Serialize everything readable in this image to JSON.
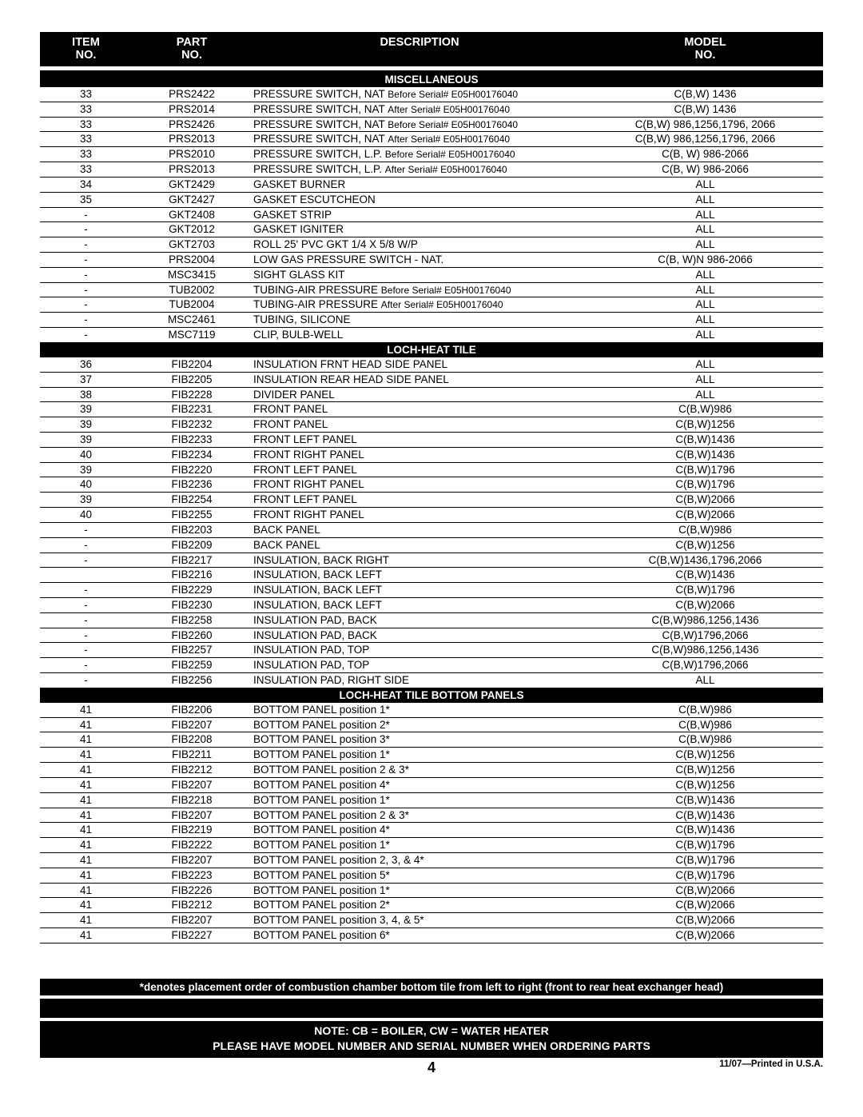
{
  "header": {
    "item1": "ITEM",
    "item2": "NO.",
    "part1": "PART",
    "part2": "NO.",
    "desc": "DESCRIPTION",
    "model1": "MODEL",
    "model2": "NO."
  },
  "sections": [
    {
      "title": "MISCELLANEOUS",
      "rows": [
        {
          "item": "33",
          "part": "PRS2422",
          "desc": "PRESSURE SWITCH, NAT",
          "serial": "Before Serial# E05H00176040",
          "model": "C(B,W) 1436"
        },
        {
          "item": "33",
          "part": "PRS2014",
          "desc": "PRESSURE SWITCH, NAT",
          "serial": "After Serial# E05H00176040",
          "model": "C(B,W) 1436"
        },
        {
          "item": "33",
          "part": "PRS2426",
          "desc": "PRESSURE SWITCH, NAT",
          "serial": "Before Serial# E05H00176040",
          "model": "C(B,W) 986,1256,1796, 2066"
        },
        {
          "item": "33",
          "part": "PRS2013",
          "desc": "PRESSURE SWITCH, NAT",
          "serial": "After Serial# E05H00176040",
          "model": "C(B,W) 986,1256,1796, 2066"
        },
        {
          "item": "33",
          "part": "PRS2010",
          "desc": "PRESSURE SWITCH, L.P.",
          "serial": "Before Serial# E05H00176040",
          "model": "C(B, W) 986-2066"
        },
        {
          "item": "33",
          "part": "PRS2013",
          "desc": "PRESSURE SWITCH, L.P.",
          "serial": "After Serial# E05H00176040",
          "model": "C(B, W) 986-2066"
        },
        {
          "item": "34",
          "part": "GKT2429",
          "desc": "GASKET BURNER",
          "serial": "",
          "model": "ALL"
        },
        {
          "item": "35",
          "part": "GKT2427",
          "desc": "GASKET ESCUTCHEON",
          "serial": "",
          "model": "ALL"
        },
        {
          "item": "-",
          "part": "GKT2408",
          "desc": "GASKET STRIP",
          "serial": "",
          "model": "ALL"
        },
        {
          "item": "-",
          "part": "GKT2012",
          "desc": "GASKET IGNITER",
          "serial": "",
          "model": "ALL"
        },
        {
          "item": "-",
          "part": "GKT2703",
          "desc": "ROLL 25' PVC GKT 1/4 X 5/8 W/P",
          "serial": "",
          "model": "ALL"
        },
        {
          "item": "-",
          "part": "PRS2004",
          "desc": "LOW GAS PRESSURE SWITCH - NAT.",
          "serial": "",
          "model": "C(B, W)N 986-2066"
        },
        {
          "item": "-",
          "part": "MSC3415",
          "desc": "SIGHT GLASS KIT",
          "serial": "",
          "model": "ALL"
        },
        {
          "item": "-",
          "part": "TUB2002",
          "desc": "TUBING-AIR PRESSURE",
          "serial": "Before Serial# E05H00176040",
          "model": "ALL"
        },
        {
          "item": "-",
          "part": "TUB2004",
          "desc": "TUBING-AIR PRESSURE",
          "serial": "After Serial# E05H00176040",
          "model": "ALL"
        },
        {
          "item": "-",
          "part": "MSC2461",
          "desc": "TUBING, SILICONE",
          "serial": "",
          "model": "ALL"
        },
        {
          "item": "-",
          "part": "MSC7119",
          "desc": "CLIP, BULB-WELL",
          "serial": "",
          "model": "ALL"
        }
      ]
    },
    {
      "title": "LOCH-HEAT TILE",
      "rows": [
        {
          "item": "36",
          "part": "FIB2204",
          "desc": "INSULATION FRNT HEAD SIDE PANEL",
          "serial": "",
          "model": "ALL"
        },
        {
          "item": "37",
          "part": "FIB2205",
          "desc": "INSULATION REAR HEAD SIDE PANEL",
          "serial": "",
          "model": "ALL"
        },
        {
          "item": "38",
          "part": "FIB2228",
          "desc": "DIVIDER PANEL",
          "serial": "",
          "model": "ALL"
        },
        {
          "item": "39",
          "part": "FIB2231",
          "desc": "FRONT PANEL",
          "serial": "",
          "model": "C(B,W)986"
        },
        {
          "item": "39",
          "part": "FIB2232",
          "desc": "FRONT PANEL",
          "serial": "",
          "model": "C(B,W)1256"
        },
        {
          "item": "39",
          "part": "FIB2233",
          "desc": "FRONT LEFT PANEL",
          "serial": "",
          "model": "C(B,W)1436"
        },
        {
          "item": "40",
          "part": "FIB2234",
          "desc": "FRONT RIGHT PANEL",
          "serial": "",
          "model": "C(B,W)1436"
        },
        {
          "item": "39",
          "part": "FIB2220",
          "desc": "FRONT LEFT PANEL",
          "serial": "",
          "model": "C(B,W)1796"
        },
        {
          "item": "40",
          "part": "FIB2236",
          "desc": "FRONT RIGHT PANEL",
          "serial": "",
          "model": "C(B,W)1796"
        },
        {
          "item": "39",
          "part": "FIB2254",
          "desc": "FRONT LEFT PANEL",
          "serial": "",
          "model": "C(B,W)2066"
        },
        {
          "item": "40",
          "part": "FIB2255",
          "desc": "FRONT RIGHT PANEL",
          "serial": "",
          "model": "C(B,W)2066"
        },
        {
          "item": "-",
          "part": "FIB2203",
          "desc": "BACK PANEL",
          "serial": "",
          "model": "C(B,W)986"
        },
        {
          "item": "-",
          "part": "FIB2209",
          "desc": "BACK PANEL",
          "serial": "",
          "model": "C(B,W)1256"
        },
        {
          "item": "-",
          "part": "FIB2217",
          "desc": "INSULATION, BACK RIGHT",
          "serial": "",
          "model": "C(B,W)1436,1796,2066"
        },
        {
          "item": "",
          "part": "FIB2216",
          "desc": "INSULATION, BACK LEFT",
          "serial": "",
          "model": "C(B,W)1436"
        },
        {
          "item": "-",
          "part": "FIB2229",
          "desc": "INSULATION, BACK LEFT",
          "serial": "",
          "model": "C(B,W)1796"
        },
        {
          "item": "-",
          "part": "FIB2230",
          "desc": "INSULATION, BACK LEFT",
          "serial": "",
          "model": "C(B,W)2066"
        },
        {
          "item": "-",
          "part": "FIB2258",
          "desc": "INSULATION PAD, BACK",
          "serial": "",
          "model": "C(B,W)986,1256,1436"
        },
        {
          "item": "-",
          "part": "FIB2260",
          "desc": "INSULATION PAD, BACK",
          "serial": "",
          "model": "C(B,W)1796,2066"
        },
        {
          "item": "-",
          "part": "FIB2257",
          "desc": "INSULATION PAD, TOP",
          "serial": "",
          "model": "C(B,W)986,1256,1436"
        },
        {
          "item": "-",
          "part": "FIB2259",
          "desc": "INSULATION PAD, TOP",
          "serial": "",
          "model": "C(B,W)1796,2066"
        },
        {
          "item": "-",
          "part": "FIB2256",
          "desc": "INSULATION PAD, RIGHT SIDE",
          "serial": "",
          "model": "ALL"
        }
      ]
    },
    {
      "title": "LOCH-HEAT TILE BOTTOM PANELS",
      "rows": [
        {
          "item": "41",
          "part": "FIB2206",
          "desc": "BOTTOM PANEL position 1*",
          "serial": "",
          "model": "C(B,W)986"
        },
        {
          "item": "41",
          "part": "FIB2207",
          "desc": "BOTTOM PANEL position 2*",
          "serial": "",
          "model": "C(B,W)986"
        },
        {
          "item": "41",
          "part": "FIB2208",
          "desc": "BOTTOM PANEL position 3*",
          "serial": "",
          "model": "C(B,W)986"
        },
        {
          "item": "41",
          "part": "FIB2211",
          "desc": "BOTTOM PANEL position 1*",
          "serial": "",
          "model": "C(B,W)1256"
        },
        {
          "item": "41",
          "part": "FIB2212",
          "desc": "BOTTOM PANEL position 2 & 3*",
          "serial": "",
          "model": "C(B,W)1256"
        },
        {
          "item": "41",
          "part": "FIB2207",
          "desc": "BOTTOM PANEL position 4*",
          "serial": "",
          "model": "C(B,W)1256"
        },
        {
          "item": "41",
          "part": "FIB2218",
          "desc": "BOTTOM PANEL position 1*",
          "serial": "",
          "model": "C(B,W)1436"
        },
        {
          "item": "41",
          "part": "FIB2207",
          "desc": "BOTTOM PANEL position 2 & 3*",
          "serial": "",
          "model": "C(B,W)1436"
        },
        {
          "item": "41",
          "part": "FIB2219",
          "desc": "BOTTOM PANEL position 4*",
          "serial": "",
          "model": "C(B,W)1436"
        },
        {
          "item": "41",
          "part": "FIB2222",
          "desc": "BOTTOM PANEL position 1*",
          "serial": "",
          "model": "C(B,W)1796"
        },
        {
          "item": "41",
          "part": "FIB2207",
          "desc": "BOTTOM PANEL position 2, 3, & 4*",
          "serial": "",
          "model": "C(B,W)1796"
        },
        {
          "item": "41",
          "part": "FIB2223",
          "desc": "BOTTOM PANEL position 5*",
          "serial": "",
          "model": "C(B,W)1796"
        },
        {
          "item": "41",
          "part": "FIB2226",
          "desc": "BOTTOM PANEL position 1*",
          "serial": "",
          "model": "C(B,W)2066"
        },
        {
          "item": "41",
          "part": "FIB2212",
          "desc": "BOTTOM PANEL position 2*",
          "serial": "",
          "model": "C(B,W)2066"
        },
        {
          "item": "41",
          "part": "FIB2207",
          "desc": "BOTTOM PANEL position 3, 4, & 5*",
          "serial": "",
          "model": "C(B,W)2066"
        },
        {
          "item": "41",
          "part": "FIB2227",
          "desc": "BOTTOM PANEL position 6*",
          "serial": "",
          "model": "C(B,W)2066"
        }
      ]
    }
  ],
  "footnote": "*denotes placement order of combustion chamber bottom tile from left to right (front to rear heat exchanger head)",
  "bottom_note_line1": "NOTE: CB = BOILER, CW = WATER HEATER",
  "bottom_note_line2": "PLEASE HAVE MODEL NUMBER AND SERIAL NUMBER WHEN ORDERING PARTS",
  "page_number": "4",
  "print_info": "11/07—Printed in U.S.A."
}
